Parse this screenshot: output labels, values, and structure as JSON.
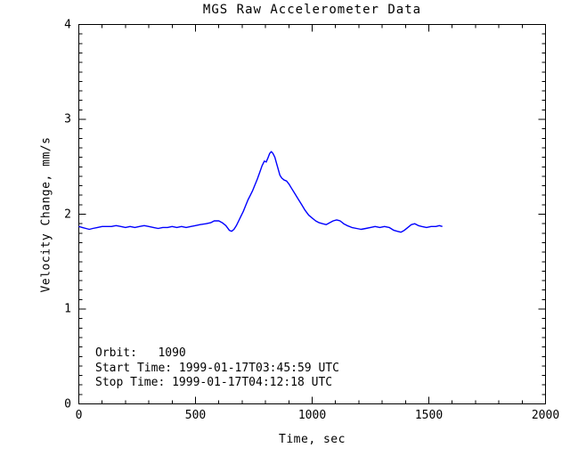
{
  "window": {
    "background": "#ffffff"
  },
  "chart_data": {
    "type": "line",
    "title": "MGS Raw Accelerometer Data",
    "xlabel": "Time, sec",
    "ylabel": "Velocity Change, mm/s",
    "xlim": [
      0,
      2000
    ],
    "ylim": [
      0,
      4
    ],
    "x_major_ticks": [
      0,
      500,
      1000,
      1500,
      2000
    ],
    "x_tick_labels": [
      "0",
      "500",
      "1000",
      "1500",
      "2000"
    ],
    "x_minor_interval": 100,
    "y_major_ticks": [
      0,
      1,
      2,
      3,
      4
    ],
    "y_tick_labels": [
      "0",
      "1",
      "2",
      "3",
      "4"
    ],
    "y_minor_interval": 0.1,
    "grid": false,
    "legend": "none",
    "line_color": "#0000ff",
    "axis_color": "#000000",
    "series": [
      {
        "name": "velocity-change-vs-time",
        "points": [
          [
            0,
            1.87
          ],
          [
            15,
            1.86
          ],
          [
            30,
            1.85
          ],
          [
            45,
            1.84
          ],
          [
            60,
            1.85
          ],
          [
            80,
            1.86
          ],
          [
            100,
            1.87
          ],
          [
            120,
            1.87
          ],
          [
            140,
            1.87
          ],
          [
            160,
            1.88
          ],
          [
            180,
            1.87
          ],
          [
            200,
            1.86
          ],
          [
            220,
            1.87
          ],
          [
            240,
            1.86
          ],
          [
            260,
            1.87
          ],
          [
            280,
            1.88
          ],
          [
            300,
            1.87
          ],
          [
            320,
            1.86
          ],
          [
            340,
            1.85
          ],
          [
            360,
            1.86
          ],
          [
            380,
            1.86
          ],
          [
            400,
            1.87
          ],
          [
            420,
            1.86
          ],
          [
            440,
            1.87
          ],
          [
            460,
            1.86
          ],
          [
            480,
            1.87
          ],
          [
            500,
            1.88
          ],
          [
            520,
            1.89
          ],
          [
            545,
            1.9
          ],
          [
            565,
            1.91
          ],
          [
            580,
            1.93
          ],
          [
            600,
            1.93
          ],
          [
            615,
            1.91
          ],
          [
            630,
            1.88
          ],
          [
            645,
            1.83
          ],
          [
            655,
            1.82
          ],
          [
            665,
            1.84
          ],
          [
            675,
            1.88
          ],
          [
            685,
            1.93
          ],
          [
            695,
            1.98
          ],
          [
            705,
            2.03
          ],
          [
            715,
            2.09
          ],
          [
            725,
            2.15
          ],
          [
            735,
            2.2
          ],
          [
            745,
            2.25
          ],
          [
            755,
            2.31
          ],
          [
            765,
            2.37
          ],
          [
            775,
            2.44
          ],
          [
            785,
            2.51
          ],
          [
            795,
            2.56
          ],
          [
            803,
            2.55
          ],
          [
            810,
            2.59
          ],
          [
            818,
            2.64
          ],
          [
            825,
            2.66
          ],
          [
            832,
            2.64
          ],
          [
            840,
            2.6
          ],
          [
            848,
            2.53
          ],
          [
            855,
            2.47
          ],
          [
            862,
            2.41
          ],
          [
            870,
            2.38
          ],
          [
            880,
            2.36
          ],
          [
            890,
            2.35
          ],
          [
            900,
            2.32
          ],
          [
            910,
            2.28
          ],
          [
            925,
            2.22
          ],
          [
            940,
            2.16
          ],
          [
            955,
            2.1
          ],
          [
            970,
            2.04
          ],
          [
            985,
            1.99
          ],
          [
            1000,
            1.96
          ],
          [
            1015,
            1.93
          ],
          [
            1030,
            1.91
          ],
          [
            1045,
            1.9
          ],
          [
            1060,
            1.89
          ],
          [
            1075,
            1.91
          ],
          [
            1090,
            1.93
          ],
          [
            1105,
            1.94
          ],
          [
            1120,
            1.93
          ],
          [
            1135,
            1.9
          ],
          [
            1150,
            1.88
          ],
          [
            1170,
            1.86
          ],
          [
            1190,
            1.85
          ],
          [
            1210,
            1.84
          ],
          [
            1230,
            1.85
          ],
          [
            1250,
            1.86
          ],
          [
            1270,
            1.87
          ],
          [
            1290,
            1.86
          ],
          [
            1310,
            1.87
          ],
          [
            1330,
            1.86
          ],
          [
            1350,
            1.83
          ],
          [
            1365,
            1.82
          ],
          [
            1380,
            1.81
          ],
          [
            1395,
            1.83
          ],
          [
            1410,
            1.86
          ],
          [
            1425,
            1.89
          ],
          [
            1440,
            1.9
          ],
          [
            1455,
            1.88
          ],
          [
            1470,
            1.87
          ],
          [
            1490,
            1.86
          ],
          [
            1510,
            1.87
          ],
          [
            1530,
            1.87
          ],
          [
            1545,
            1.88
          ],
          [
            1558,
            1.87
          ]
        ]
      }
    ]
  },
  "annotations": {
    "orbit_line": "Orbit:   1090",
    "start_line": "Start Time: 1999-01-17T03:45:59 UTC",
    "stop_line": "Stop Time: 1999-01-17T04:12:18 UTC",
    "orbit_number": "1090",
    "start_time": "1999-01-17T03:45:59 UTC",
    "stop_time": "1999-01-17T04:12:18 UTC"
  }
}
